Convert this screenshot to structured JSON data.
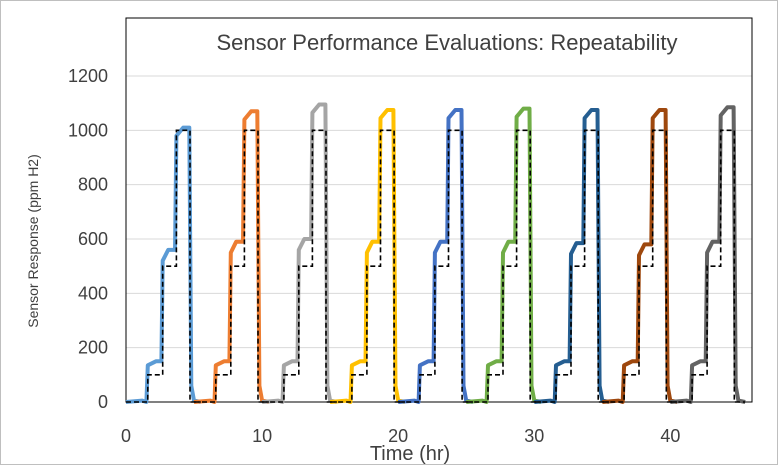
{
  "chart_data": {
    "type": "line",
    "title": "Sensor Performance Evaluations: Repeatability",
    "xlabel": "Time (hr)",
    "ylabel": "Sensor Response (ppm H2)",
    "xlim": [
      0,
      46
    ],
    "ylim": [
      0,
      1200
    ],
    "x_ticks": [
      0,
      10,
      20,
      30,
      40
    ],
    "y_ticks": [
      0,
      200,
      400,
      600,
      800,
      1000,
      1200
    ],
    "grid": "horizontal",
    "series_colors": [
      "#5b9bd5",
      "#ed7d31",
      "#a5a5a5",
      "#ffc000",
      "#4472c4",
      "#70ad47",
      "#255e91",
      "#9e480e",
      "#636363"
    ],
    "cycle_starts": [
      0.6,
      5.6,
      10.6,
      15.6,
      20.6,
      25.6,
      30.6,
      35.6,
      40.6
    ],
    "cycle_peaks": [
      1010,
      1070,
      1095,
      1075,
      1075,
      1080,
      1075,
      1075,
      1085
    ],
    "cycle_mid": [
      560,
      590,
      600,
      590,
      590,
      590,
      585,
      580,
      590
    ],
    "cycle_low": [
      150,
      150,
      150,
      150,
      150,
      150,
      150,
      150,
      150
    ],
    "reference": {
      "style": "dashed",
      "color": "#000000",
      "levels": [
        0,
        100,
        500,
        1000,
        0
      ]
    }
  }
}
